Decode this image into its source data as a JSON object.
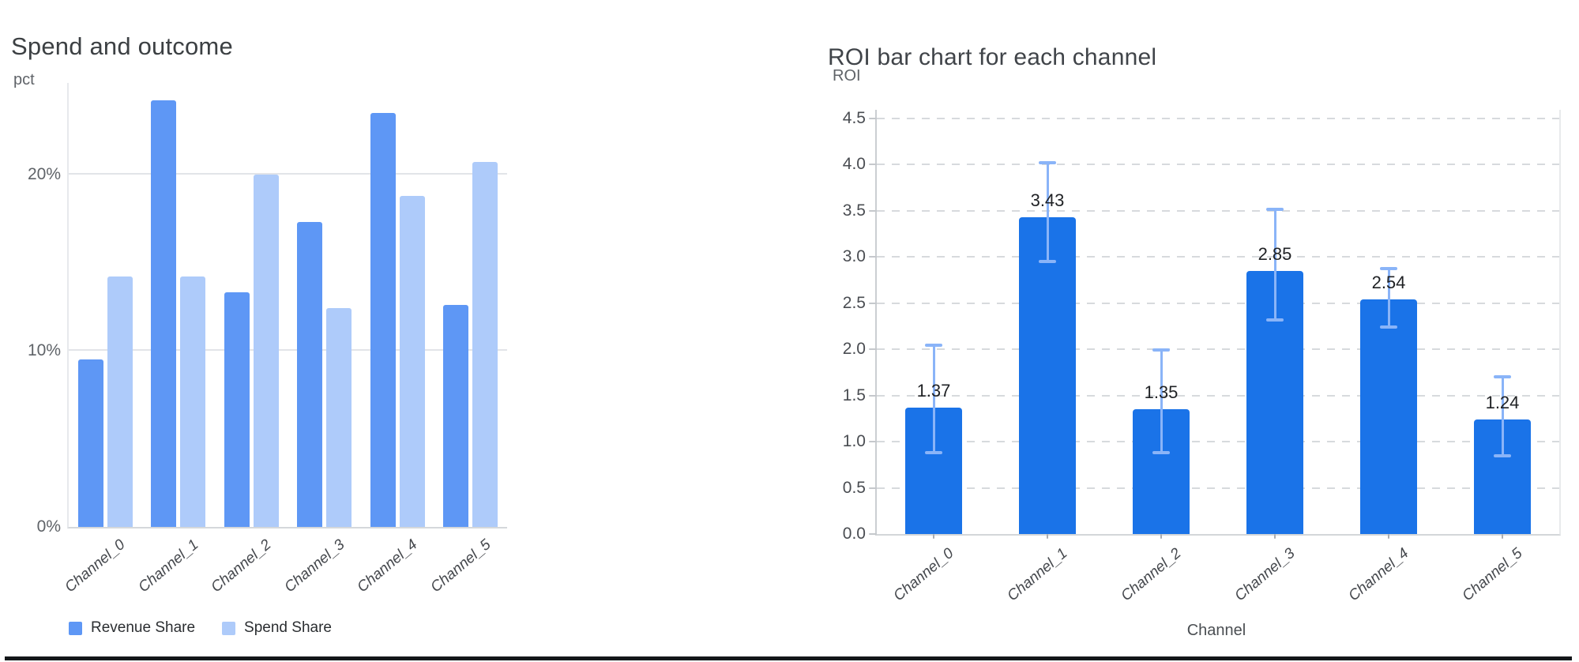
{
  "page": {
    "background_color": "#ffffff",
    "bottom_rule_color": "#14171a"
  },
  "chart_data": [
    {
      "type": "bar",
      "title": "Spend and outcome",
      "ylabel": "pct",
      "xlabel": "",
      "categories": [
        "Channel_0",
        "Channel_1",
        "Channel_2",
        "Channel_3",
        "Channel_4",
        "Channel_5"
      ],
      "series": [
        {
          "name": "Revenue Share",
          "color": "#5e97f5",
          "values": [
            9.5,
            24.2,
            13.3,
            17.3,
            23.5,
            12.6
          ]
        },
        {
          "name": "Spend Share",
          "color": "#aecbfa",
          "values": [
            14.2,
            14.2,
            20.0,
            12.4,
            18.8,
            20.7
          ]
        }
      ],
      "unit": "percent of total",
      "ylim": [
        0,
        25.2
      ],
      "yticks": [
        0,
        10,
        20
      ],
      "ytick_suffix": "%",
      "grid": "solid",
      "grid_color": "#e2e4e8",
      "legend_position": "bottom"
    },
    {
      "type": "bar",
      "title": "ROI bar chart for each channel",
      "ylabel": "ROI",
      "xlabel": "Channel",
      "categories": [
        "Channel_0",
        "Channel_1",
        "Channel_2",
        "Channel_3",
        "Channel_4",
        "Channel_5"
      ],
      "series": [
        {
          "name": "ROI",
          "color": "#1a73e8",
          "values": [
            1.37,
            3.43,
            1.35,
            2.85,
            2.54,
            1.24
          ]
        }
      ],
      "value_labels": [
        "1.37",
        "3.43",
        "1.35",
        "2.85",
        "2.54",
        "1.24"
      ],
      "error_bars": {
        "color": "#8ab4f8",
        "low": [
          0.88,
          2.95,
          0.88,
          2.32,
          2.24,
          0.85
        ],
        "high": [
          2.04,
          4.02,
          1.99,
          3.51,
          2.87,
          1.7
        ]
      },
      "ylim": [
        0,
        4.59
      ],
      "yticks": [
        0,
        0.5,
        1.0,
        1.5,
        2.0,
        2.5,
        3.0,
        3.5,
        4.0,
        4.5
      ],
      "ytick_decimals": 1,
      "grid": "dashed",
      "grid_color": "#d7dadd",
      "legend_position": "none"
    }
  ]
}
